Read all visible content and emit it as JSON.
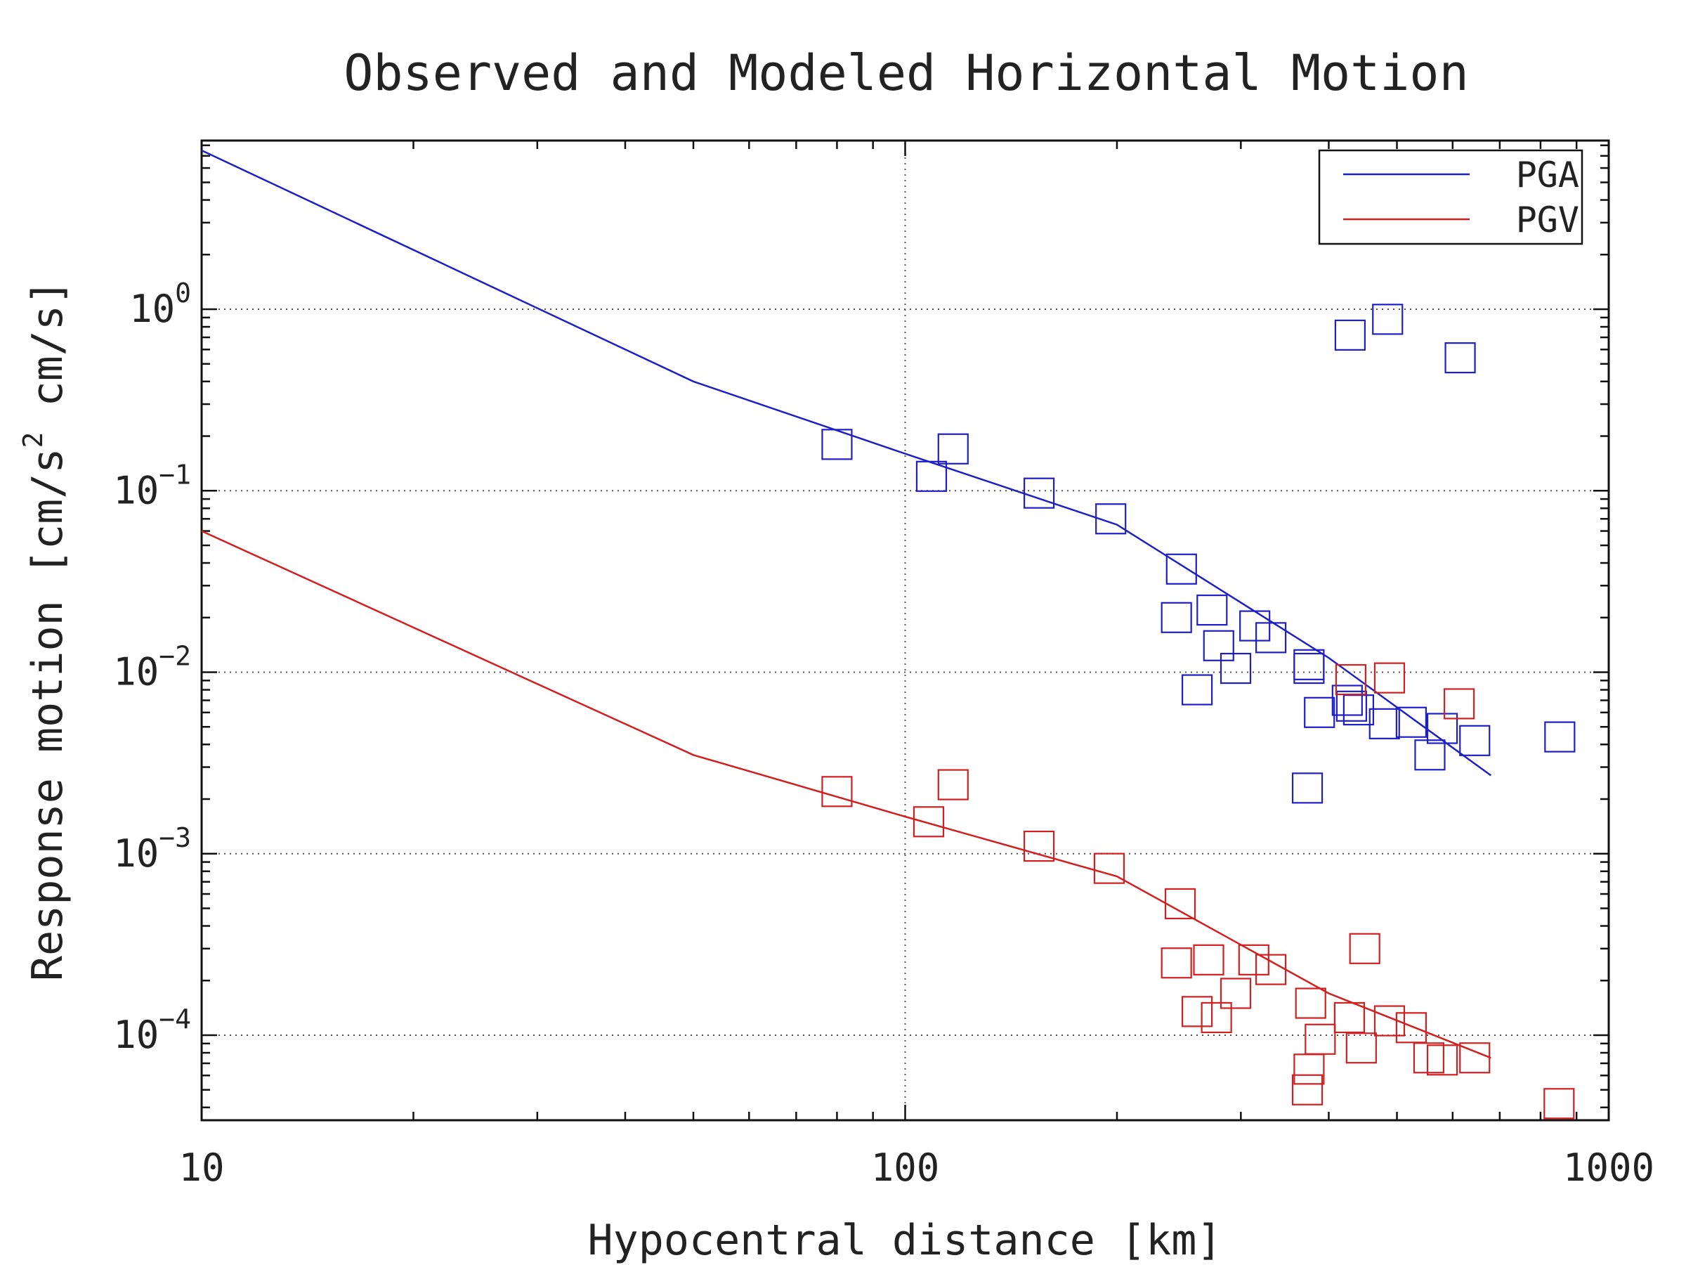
{
  "chart_data": {
    "type": "scatter",
    "title": "Observed and Modeled Horizontal Motion",
    "xlabel": "Hypocentral distance [km]",
    "ylabel": "Response motion [cm/s² cm/s]",
    "ylabel_parts": {
      "a": "Response motion [cm/s",
      "sup": "2",
      "b": " cm/s]"
    },
    "xscale": "log",
    "yscale": "log",
    "xlim": [
      10,
      1000
    ],
    "ylim": [
      3.4e-05,
      8.5
    ],
    "x_ticks": [
      {
        "value": 10,
        "label": "10"
      },
      {
        "value": 100,
        "label": "100"
      },
      {
        "value": 1000,
        "label": "1000"
      }
    ],
    "y_ticks": [
      {
        "value": 1,
        "base": "10",
        "exp": "0"
      },
      {
        "value": 0.1,
        "base": "10",
        "exp": "−1"
      },
      {
        "value": 0.01,
        "base": "10",
        "exp": "−2"
      },
      {
        "value": 0.001,
        "base": "10",
        "exp": "−3"
      },
      {
        "value": 0.0001,
        "base": "10",
        "exp": "−4"
      }
    ],
    "grid": true,
    "legend_position": "top-right",
    "series": [
      {
        "name": "PGA",
        "color": "#1f1fc8",
        "model_line": [
          [
            10,
            7.5
          ],
          [
            50,
            0.4
          ],
          [
            100,
            0.16
          ],
          [
            200,
            0.065
          ],
          [
            400,
            0.012
          ],
          [
            680,
            0.0027
          ]
        ],
        "observed": [
          [
            80,
            0.18
          ],
          [
            109,
            0.12
          ],
          [
            117,
            0.17
          ],
          [
            155,
            0.097
          ],
          [
            196,
            0.07
          ],
          [
            247,
            0.037
          ],
          [
            243,
            0.02
          ],
          [
            260,
            0.008
          ],
          [
            273,
            0.022
          ],
          [
            279,
            0.014
          ],
          [
            295,
            0.0105
          ],
          [
            314,
            0.018
          ],
          [
            331,
            0.0155
          ],
          [
            375,
            0.011
          ],
          [
            375,
            0.0105
          ],
          [
            373,
            0.0023
          ],
          [
            388,
            0.006
          ],
          [
            425,
            0.007
          ],
          [
            431,
            0.0065
          ],
          [
            441,
            0.0062
          ],
          [
            480,
            0.0052
          ],
          [
            524,
            0.0053
          ],
          [
            557,
            0.0035
          ],
          [
            580,
            0.0049
          ],
          [
            645,
            0.0042
          ],
          [
            852,
            0.0044
          ],
          [
            429,
            0.72
          ],
          [
            485,
            0.88
          ],
          [
            615,
            0.54
          ]
        ]
      },
      {
        "name": "PGV",
        "color": "#d21f1f",
        "model_line": [
          [
            10,
            0.06
          ],
          [
            50,
            0.0035
          ],
          [
            100,
            0.0016
          ],
          [
            200,
            0.00075
          ],
          [
            400,
            0.00017
          ],
          [
            680,
            7.5e-05
          ]
        ],
        "observed": [
          [
            80,
            0.0022
          ],
          [
            108,
            0.0015
          ],
          [
            117,
            0.0024
          ],
          [
            155,
            0.0011
          ],
          [
            195,
            0.00083
          ],
          [
            246,
            0.00053
          ],
          [
            243,
            0.00025
          ],
          [
            260,
            0.000135
          ],
          [
            270,
            0.00026
          ],
          [
            277,
            0.000125
          ],
          [
            295,
            0.00017
          ],
          [
            313,
            0.00026
          ],
          [
            331,
            0.00023
          ],
          [
            377,
            0.00015
          ],
          [
            373,
            5e-05
          ],
          [
            375,
            6.5e-05
          ],
          [
            389,
            9.5e-05
          ],
          [
            428,
            0.000125
          ],
          [
            430,
            0.0091
          ],
          [
            445,
            8.5e-05
          ],
          [
            450,
            0.0003
          ],
          [
            488,
            0.00012
          ],
          [
            488,
            0.0093
          ],
          [
            524,
            0.00011
          ],
          [
            555,
            7.5e-05
          ],
          [
            580,
            7.3e-05
          ],
          [
            613,
            0.0067
          ],
          [
            645,
            7.5e-05
          ],
          [
            850,
            4.2e-05
          ]
        ]
      }
    ]
  }
}
